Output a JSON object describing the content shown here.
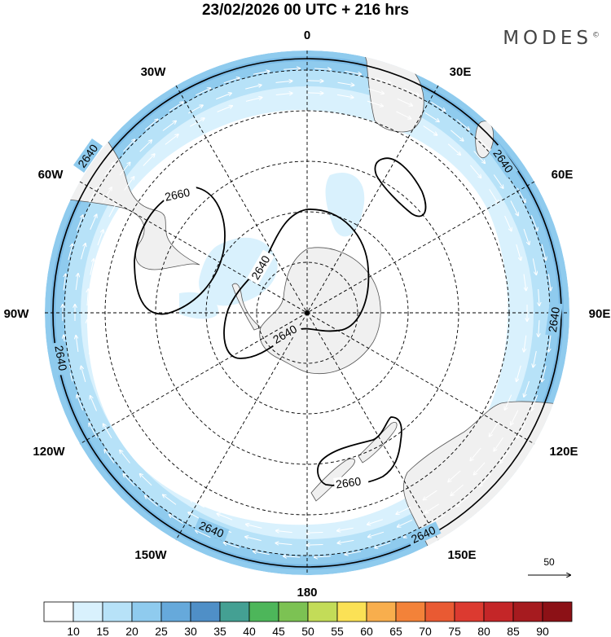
{
  "title": "23/02/2026  00 UTC  + 216 hrs",
  "brand": "MODES",
  "brand_mark": "©",
  "longitude_labels": {
    "n0": "0",
    "n30e": "30E",
    "n60e": "60E",
    "n90e": "90E",
    "n120e": "120E",
    "n150e": "150E",
    "n180": "180",
    "n150w": "150W",
    "n120w": "120W",
    "n90w": "90W",
    "n60w": "60W",
    "n30w": "30W"
  },
  "contour_labels": {
    "c1": "2640",
    "c2": "2640",
    "c3": "2640",
    "c4": "2640",
    "c5": "2640",
    "c6": "2660",
    "c7": "2640",
    "c8": "2640",
    "c9": "2660"
  },
  "wind_reference": "50",
  "colorbar": {
    "ticks": [
      "10",
      "15",
      "20",
      "25",
      "30",
      "35",
      "40",
      "45",
      "50",
      "55",
      "60",
      "65",
      "70",
      "75",
      "80",
      "85",
      "90"
    ],
    "colors": [
      "#ffffff",
      "#d9f1fd",
      "#b7e2f8",
      "#8fcbee",
      "#66a9db",
      "#4f8fc7",
      "#44a093",
      "#4db65a",
      "#7cc253",
      "#c3dc58",
      "#fbe155",
      "#f8ae4d",
      "#f38239",
      "#e95a33",
      "#dc3a30",
      "#c42628",
      "#a61b1f",
      "#8c1116"
    ]
  },
  "colors": {
    "ocean": "#ffffff",
    "land": "#f0f0f0",
    "contour": "#000000",
    "grid": "#000000"
  }
}
